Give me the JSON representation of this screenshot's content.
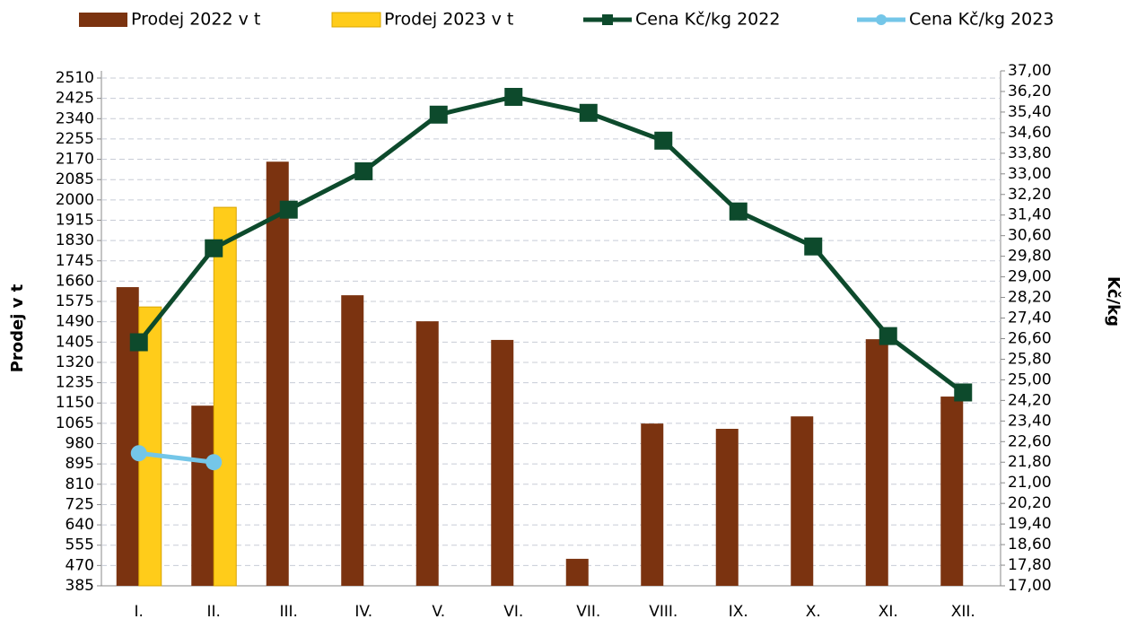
{
  "chart_data": {
    "type": "bar-line",
    "categories": [
      "I.",
      "II.",
      "III.",
      "IV.",
      "V.",
      "VI.",
      "VII.",
      "VIII.",
      "IX.",
      "X.",
      "XI.",
      "XII."
    ],
    "ylabel": "Prodej v t",
    "y2label": "Kč/kg",
    "ylim": [
      385,
      2510
    ],
    "yticks": [
      385,
      470,
      555,
      640,
      725,
      810,
      895,
      980,
      1065,
      1150,
      1235,
      1320,
      1405,
      1490,
      1575,
      1660,
      1745,
      1830,
      1915,
      2000,
      2085,
      2170,
      2255,
      2340,
      2425,
      2510
    ],
    "y2lim": [
      17,
      37
    ],
    "y2ticks": [
      {
        "value": 17,
        "label": "17,00"
      },
      {
        "value": 17.8,
        "label": "17,80"
      },
      {
        "value": 18.6,
        "label": "18,60"
      },
      {
        "value": 19.4,
        "label": "19,40"
      },
      {
        "value": 20.2,
        "label": "20,20"
      },
      {
        "value": 21,
        "label": "21,00"
      },
      {
        "value": 21.8,
        "label": "21,80"
      },
      {
        "value": 22.6,
        "label": "22,60"
      },
      {
        "value": 23.4,
        "label": "23,40"
      },
      {
        "value": 24.2,
        "label": "24,20"
      },
      {
        "value": 25,
        "label": "25,00"
      },
      {
        "value": 25.8,
        "label": "25,80"
      },
      {
        "value": 26.6,
        "label": "26,60"
      },
      {
        "value": 27.4,
        "label": "27,40"
      },
      {
        "value": 28.2,
        "label": "28,20"
      },
      {
        "value": 29,
        "label": "29,00"
      },
      {
        "value": 29.8,
        "label": "29,80"
      },
      {
        "value": 30.6,
        "label": "30,60"
      },
      {
        "value": 31.4,
        "label": "31,40"
      },
      {
        "value": 32.2,
        "label": "32,20"
      },
      {
        "value": 33,
        "label": "33,00"
      },
      {
        "value": 33.8,
        "label": "33,80"
      },
      {
        "value": 34.6,
        "label": "34,60"
      },
      {
        "value": 35.4,
        "label": "35,40"
      },
      {
        "value": 36.2,
        "label": "36,20"
      },
      {
        "value": 37,
        "label": "37,00"
      }
    ],
    "grid": true,
    "legend": "top",
    "series": [
      {
        "name": "Prodej 2022 v t",
        "type": "bar",
        "color": "#7b3310",
        "values": [
          1635,
          1139,
          2160,
          1601,
          1492,
          1414,
          498,
          1064,
          1042,
          1094,
          1417,
          1177
        ]
      },
      {
        "name": "Prodej 2023 v t",
        "type": "bar",
        "color": "#ffcc1a",
        "values": [
          1552,
          1969,
          null,
          null,
          null,
          null,
          null,
          null,
          null,
          null,
          null,
          null
        ]
      },
      {
        "name": "Cena Kč/kg 2022",
        "type": "line",
        "axis": "y2",
        "marker": "square",
        "color": "#0d4a2c",
        "values": [
          26.46,
          30.11,
          31.61,
          33.1,
          35.3,
          35.99,
          35.37,
          34.29,
          31.54,
          30.18,
          26.7,
          24.51
        ]
      },
      {
        "name": "Cena Kč/kg 2023",
        "type": "line",
        "axis": "y2",
        "marker": "circle",
        "color": "#74c6e8",
        "values": [
          22.15,
          21.8,
          null,
          null,
          null,
          null,
          null,
          null,
          null,
          null,
          null,
          null
        ]
      }
    ]
  }
}
